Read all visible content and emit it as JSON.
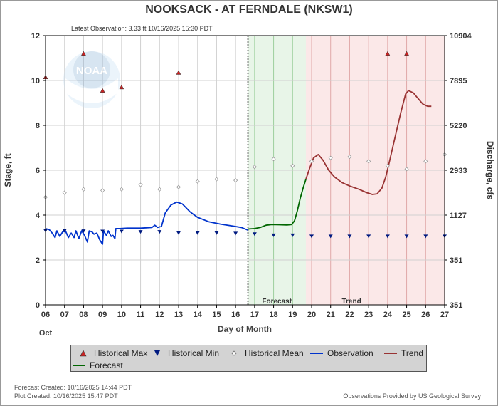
{
  "chart_data": {
    "type": "line",
    "title": "NOOKSACK - AT FERNDALE  (NKSW1)",
    "subtitle": "Latest Observation: 3.33 ft 10/16/2025 15:30 PDT",
    "xlabel": "Day of Month",
    "xlabel_month": "Oct",
    "ylabel_left": "Stage, ft",
    "ylabel_right": "Discharge, cfs",
    "xlim": [
      6,
      27
    ],
    "ylim": [
      0,
      12
    ],
    "x_ticks": [
      "06",
      "07",
      "08",
      "09",
      "10",
      "11",
      "12",
      "13",
      "14",
      "15",
      "16",
      "17",
      "18",
      "19",
      "20",
      "21",
      "22",
      "23",
      "24",
      "25",
      "26",
      "27"
    ],
    "y_ticks": [
      "0",
      "2",
      "4",
      "6",
      "8",
      "10",
      "12"
    ],
    "right_ticks": [
      {
        "stage": 0,
        "label": "351"
      },
      {
        "stage": 2,
        "label": "351"
      },
      {
        "stage": 4,
        "label": "1127"
      },
      {
        "stage": 6,
        "label": "2933"
      },
      {
        "stage": 8,
        "label": "5220"
      },
      {
        "stage": 10,
        "label": "7895"
      },
      {
        "stage": 12,
        "label": "10904"
      }
    ],
    "now_x": 16.65,
    "forecast_region": {
      "x0": 16.65,
      "x1": 19.7,
      "label": "Forecast",
      "color": "#e8f5e8",
      "line_color": "#9ed09e"
    },
    "trend_region": {
      "x0": 19.7,
      "x1": 27,
      "label": "Trend",
      "color": "#fbe8e8",
      "line_color": "#e0a8a8"
    },
    "series": [
      {
        "name": "Observation",
        "color": "#0033cc",
        "points": [
          [
            6.0,
            3.4
          ],
          [
            6.2,
            3.35
          ],
          [
            6.35,
            3.2
          ],
          [
            6.5,
            3.0
          ],
          [
            6.6,
            3.3
          ],
          [
            6.75,
            3.05
          ],
          [
            6.9,
            3.25
          ],
          [
            7.05,
            3.3
          ],
          [
            7.2,
            3.0
          ],
          [
            7.35,
            3.2
          ],
          [
            7.5,
            3.0
          ],
          [
            7.6,
            3.3
          ],
          [
            7.75,
            2.95
          ],
          [
            7.9,
            3.3
          ],
          [
            8.05,
            3.1
          ],
          [
            8.2,
            2.8
          ],
          [
            8.3,
            3.3
          ],
          [
            8.45,
            3.25
          ],
          [
            8.55,
            3.15
          ],
          [
            8.7,
            3.2
          ],
          [
            8.85,
            2.9
          ],
          [
            9.0,
            2.7
          ],
          [
            9.05,
            3.3
          ],
          [
            9.2,
            3.1
          ],
          [
            9.3,
            3.3
          ],
          [
            9.45,
            3.05
          ],
          [
            9.55,
            3.1
          ],
          [
            9.65,
            2.95
          ],
          [
            9.7,
            3.4
          ],
          [
            9.9,
            3.4
          ],
          [
            10.3,
            3.42
          ],
          [
            11.0,
            3.42
          ],
          [
            11.6,
            3.45
          ],
          [
            11.75,
            3.55
          ],
          [
            11.9,
            3.45
          ],
          [
            12.1,
            3.5
          ],
          [
            12.3,
            4.1
          ],
          [
            12.6,
            4.45
          ],
          [
            12.9,
            4.58
          ],
          [
            13.2,
            4.5
          ],
          [
            13.6,
            4.15
          ],
          [
            14.0,
            3.9
          ],
          [
            14.6,
            3.7
          ],
          [
            15.2,
            3.6
          ],
          [
            15.8,
            3.52
          ],
          [
            16.3,
            3.45
          ],
          [
            16.65,
            3.33
          ]
        ]
      },
      {
        "name": "Forecast",
        "color": "#006600",
        "points": [
          [
            16.65,
            3.38
          ],
          [
            17.0,
            3.4
          ],
          [
            17.3,
            3.45
          ],
          [
            17.6,
            3.55
          ],
          [
            17.9,
            3.58
          ],
          [
            18.3,
            3.57
          ],
          [
            18.7,
            3.56
          ],
          [
            18.95,
            3.58
          ],
          [
            19.1,
            3.75
          ],
          [
            19.25,
            4.2
          ],
          [
            19.4,
            4.75
          ],
          [
            19.55,
            5.2
          ],
          [
            19.7,
            5.6
          ]
        ]
      },
      {
        "name": "Trend",
        "color": "#993333",
        "points": [
          [
            19.7,
            5.6
          ],
          [
            19.9,
            6.1
          ],
          [
            20.1,
            6.55
          ],
          [
            20.35,
            6.7
          ],
          [
            20.6,
            6.45
          ],
          [
            20.9,
            6.0
          ],
          [
            21.2,
            5.7
          ],
          [
            21.6,
            5.45
          ],
          [
            22.0,
            5.3
          ],
          [
            22.5,
            5.15
          ],
          [
            22.9,
            5.0
          ],
          [
            23.2,
            4.92
          ],
          [
            23.45,
            4.95
          ],
          [
            23.7,
            5.2
          ],
          [
            23.9,
            5.7
          ],
          [
            24.1,
            6.4
          ],
          [
            24.4,
            7.5
          ],
          [
            24.7,
            8.6
          ],
          [
            24.95,
            9.4
          ],
          [
            25.1,
            9.55
          ],
          [
            25.35,
            9.45
          ],
          [
            25.6,
            9.2
          ],
          [
            25.85,
            8.95
          ],
          [
            26.1,
            8.85
          ],
          [
            26.3,
            8.85
          ]
        ]
      }
    ],
    "historical_max": [
      [
        6.0,
        10.15
      ],
      [
        8.0,
        11.2
      ],
      [
        9.0,
        9.55
      ],
      [
        10.0,
        9.7
      ],
      [
        13.0,
        10.35
      ],
      [
        24.0,
        11.2
      ],
      [
        25.0,
        11.2
      ]
    ],
    "historical_min": [
      [
        6.0,
        3.3
      ],
      [
        7.0,
        3.3
      ],
      [
        8.0,
        3.28
      ],
      [
        9.0,
        3.27
      ],
      [
        10.0,
        3.27
      ],
      [
        11.0,
        3.25
      ],
      [
        12.0,
        3.25
      ],
      [
        13.0,
        3.2
      ],
      [
        14.0,
        3.2
      ],
      [
        15.0,
        3.2
      ],
      [
        16.0,
        3.18
      ],
      [
        17.0,
        3.15
      ],
      [
        18.0,
        3.1
      ],
      [
        19.0,
        3.1
      ],
      [
        20.0,
        3.05
      ],
      [
        21.0,
        3.05
      ],
      [
        22.0,
        3.05
      ],
      [
        23.0,
        3.05
      ],
      [
        24.0,
        3.05
      ],
      [
        25.0,
        3.05
      ],
      [
        26.0,
        3.05
      ],
      [
        27.0,
        3.05
      ]
    ],
    "historical_mean": [
      [
        6.0,
        4.8
      ],
      [
        7.0,
        5.0
      ],
      [
        8.0,
        5.15
      ],
      [
        9.0,
        5.1
      ],
      [
        10.0,
        5.15
      ],
      [
        11.0,
        5.35
      ],
      [
        12.0,
        5.15
      ],
      [
        13.0,
        5.25
      ],
      [
        14.0,
        5.5
      ],
      [
        15.0,
        5.6
      ],
      [
        16.0,
        5.55
      ],
      [
        17.0,
        6.15
      ],
      [
        18.0,
        6.5
      ],
      [
        19.0,
        6.2
      ],
      [
        20.0,
        6.4
      ],
      [
        21.0,
        6.55
      ],
      [
        22.0,
        6.6
      ],
      [
        23.0,
        6.4
      ],
      [
        24.0,
        6.2
      ],
      [
        25.0,
        6.05
      ],
      [
        26.0,
        6.4
      ],
      [
        27.0,
        6.7
      ]
    ],
    "grid": true,
    "legend_position": "bottom"
  },
  "legend": {
    "hist_max": "Historical Max",
    "hist_min": "Historical Min",
    "hist_mean": "Historical Mean",
    "observation": "Observation",
    "trend": "Trend",
    "forecast": "Forecast"
  },
  "footer": {
    "forecast_created": "Forecast Created: 10/16/2025 14:44 PDT",
    "plot_created": "Plot Created: 10/16/2025 15:47 PDT",
    "credit": "Observations Provided by US Geological Survey"
  },
  "logo": {
    "text": "NOAA"
  },
  "colors": {
    "max_marker": "#cc2222",
    "min_marker": "#001a80",
    "mean_marker": "#999999"
  }
}
